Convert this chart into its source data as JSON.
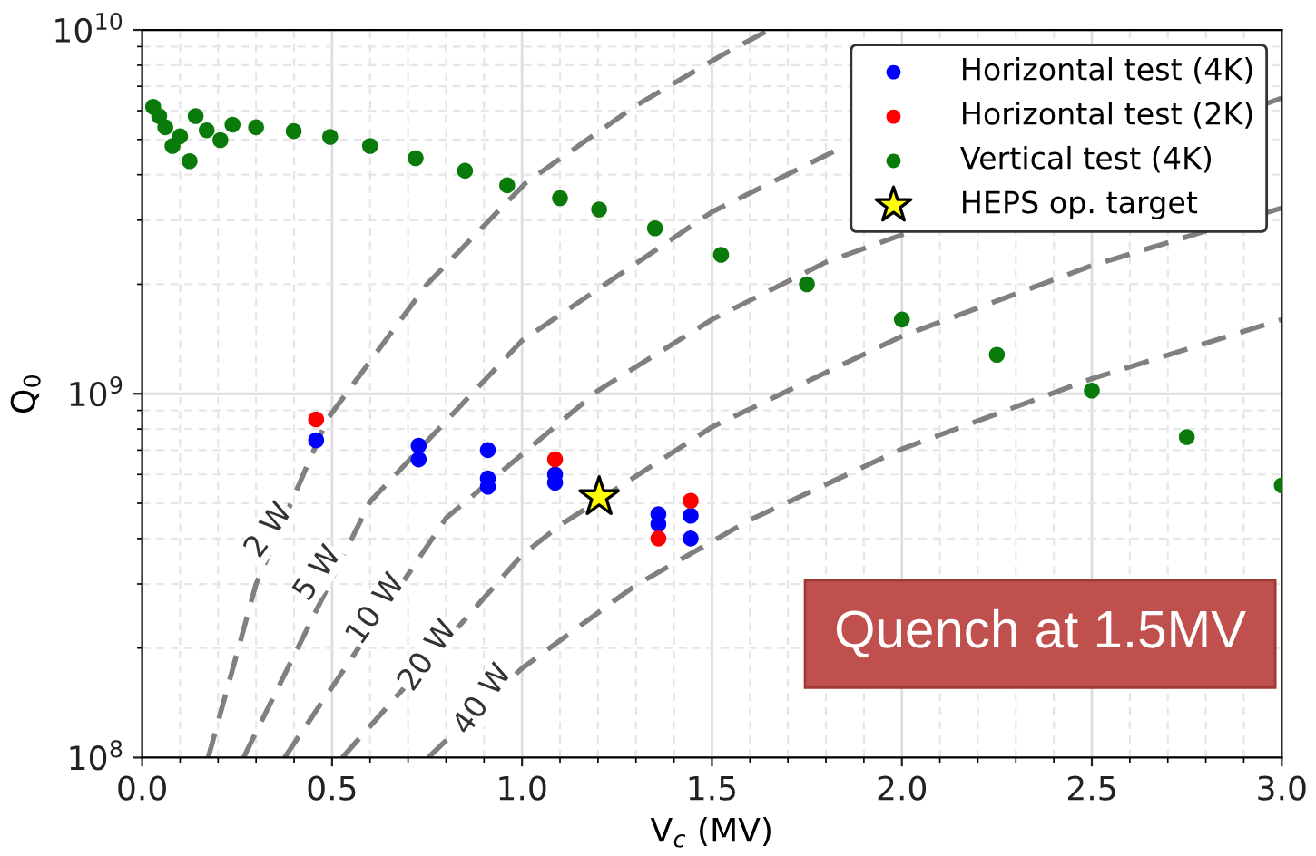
{
  "chart_data": {
    "type": "scatter",
    "xlabel": "V$_{c}$ (MV)",
    "ylabel": "Q$_{0}$",
    "log": "y",
    "xlim": [
      0.0,
      3.0
    ],
    "xticks": [
      {
        "value": 0.0,
        "label": "0.0"
      },
      0.5,
      {
        "value": 1.0,
        "label": "1.0"
      },
      1.5,
      {
        "value": 2.0,
        "label": "2.0"
      },
      2.5,
      {
        "value": 3.0,
        "label": "3.0"
      }
    ],
    "ylim": [
      100000000,
      10000000000
    ],
    "yticks": [
      {
        "value": 100000000,
        "label": "10$^{8}$"
      },
      {
        "value": 1000000000,
        "label": "10$^{9}$"
      },
      {
        "value": 10000000000,
        "label": "10$^{10}$"
      }
    ],
    "grid": true,
    "legend": "top right",
    "marker": "circle",
    "series": [
      {
        "type": "line",
        "color": "#808080",
        "line_style": "dashed",
        "marker": "none",
        "x": [
          0.174,
          0.3,
          0.487,
          0.75,
          1.01,
          1.3,
          1.524,
          1.65
        ],
        "values": [
          100000000,
          300000000,
          850000000,
          2000000000,
          3800000000,
          6200000000,
          8500000000,
          10000000000
        ]
      },
      {
        "type": "line",
        "color": "#808080",
        "line_style": "dashed",
        "marker": "none",
        "x": [
          0.267,
          0.6,
          1.0,
          1.5,
          1.85
        ],
        "values": [
          100000000,
          505000000,
          1400000000,
          3160000000,
          4800000000
        ]
      },
      {
        "type": "line",
        "color": "#808080",
        "line_style": "dashed",
        "marker": "none",
        "x": [
          0.375,
          0.8,
          1.2,
          1.5,
          1.8,
          3.0
        ],
        "values": [
          100000000,
          455000000,
          1020000000,
          1600000000,
          2300000000,
          6500000000
        ]
      },
      {
        "type": "line",
        "color": "#808080",
        "line_style": "dashed",
        "marker": "none",
        "x": [
          0.527,
          1.0,
          1.1,
          1.5,
          2.0,
          2.5,
          3.0
        ],
        "values": [
          100000000,
          360000000,
          435000000,
          810000000,
          1440000000,
          2250000000,
          3240000000
        ]
      },
      {
        "type": "line",
        "color": "#808080",
        "line_style": "dashed",
        "marker": "none",
        "x": [
          0.753,
          1.0,
          1.3,
          1.6,
          2.0,
          2.5,
          3.0
        ],
        "values": [
          100000000,
          176000000,
          298000000,
          450000000,
          705000000,
          1100000000,
          1600000000
        ]
      },
      {
        "name": "Horizontal test (4K)",
        "color": "#0000ff",
        "x": [
          0.458,
          0.728,
          0.728,
          0.91,
          0.91,
          0.91,
          1.087,
          1.087,
          1.359,
          1.359,
          1.444,
          1.444
        ],
        "values": [
          745000000,
          720000000,
          660000000,
          700000000,
          585000000,
          555000000,
          600000000,
          570000000,
          467000000,
          438000000,
          462000000,
          400000000
        ]
      },
      {
        "name": "Horizontal test (2K)",
        "color": "#ff0000",
        "x": [
          0.458,
          1.087,
          1.359,
          1.444
        ],
        "values": [
          850000000,
          660000000,
          400000000,
          508000000
        ]
      },
      {
        "name": "Vertical test (4K)",
        "color": "#0a7a0a",
        "x": [
          0.029,
          0.045,
          0.061,
          0.08,
          0.1,
          0.125,
          0.141,
          0.17,
          0.206,
          0.238,
          0.3,
          0.399,
          0.495,
          0.6,
          0.72,
          0.85,
          0.961,
          1.1,
          1.203,
          1.35,
          1.524,
          1.75,
          2.0,
          2.25,
          2.5,
          2.75,
          3.0
        ],
        "values": [
          6150000000,
          5800000000,
          5400000000,
          4800000000,
          5100000000,
          4360000000,
          5800000000,
          5300000000,
          4980000000,
          5490000000,
          5400000000,
          5270000000,
          5080000000,
          4800000000,
          4440000000,
          4100000000,
          3740000000,
          3450000000,
          3210000000,
          2850000000,
          2410000000,
          2000000000,
          1600000000,
          1280000000,
          1020000000,
          760000000,
          560000000
        ]
      },
      {
        "name": "HEPS op. target",
        "color": "#ffff00",
        "marker": "star",
        "x": [
          1.203
        ],
        "values": [
          520000000
        ]
      }
    ],
    "annotations": [
      {
        "text": "2 W",
        "x": 0.334,
        "y": 420000000
      },
      {
        "text": "5 W",
        "x": 0.463,
        "y": 320000000
      },
      {
        "text": "10 W",
        "x": 0.616,
        "y": 255000000
      },
      {
        "text": "20 W",
        "x": 0.753,
        "y": 190000000
      },
      {
        "text": "40 W",
        "x": 0.897,
        "y": 144000000
      },
      "Quench at 1.5MV"
    ]
  }
}
